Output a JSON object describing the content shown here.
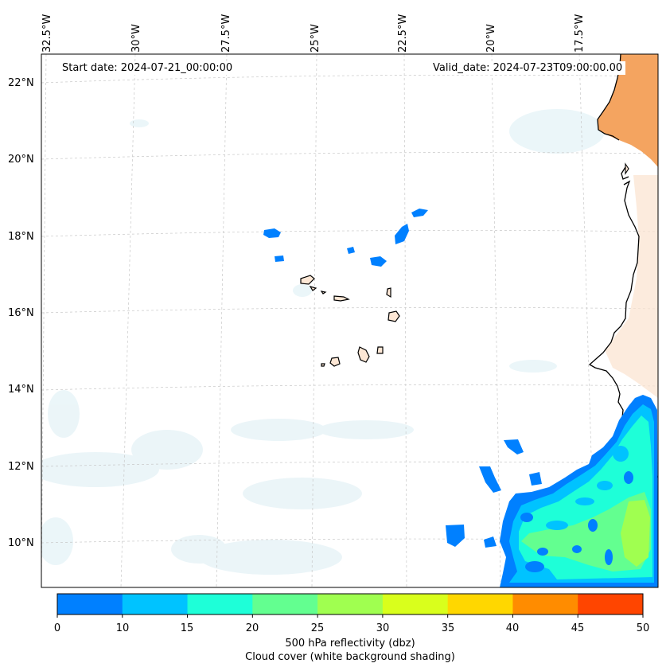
{
  "map": {
    "start_date_label": "Start date: 2024-07-21_00:00:00",
    "valid_date_label": "Valid_date: 2024-07-23T09:00:00.00",
    "latitude_labels": [
      "22°N",
      "20°N",
      "18°N",
      "16°N",
      "14°N",
      "12°N",
      "10°N"
    ],
    "longitude_labels": [
      "32.5°W",
      "30°W",
      "27.5°W",
      "25°W",
      "22.5°W",
      "20°W",
      "17.5°W"
    ],
    "land_color": "#f4a460",
    "coastline_color": "#000000"
  },
  "colorbar": {
    "ticks": [
      "0",
      "10",
      "15",
      "20",
      "25",
      "30",
      "35",
      "40",
      "45",
      "50"
    ],
    "colors": [
      "#0080ff",
      "#00c3ff",
      "#1effd8",
      "#63ff90",
      "#a0ff50",
      "#d9ff1c",
      "#ffd700",
      "#ff8c00",
      "#ff4500"
    ],
    "label": "500 hPa reflectivity (dbz)",
    "sublabel": "Cloud cover (white background shading)"
  }
}
